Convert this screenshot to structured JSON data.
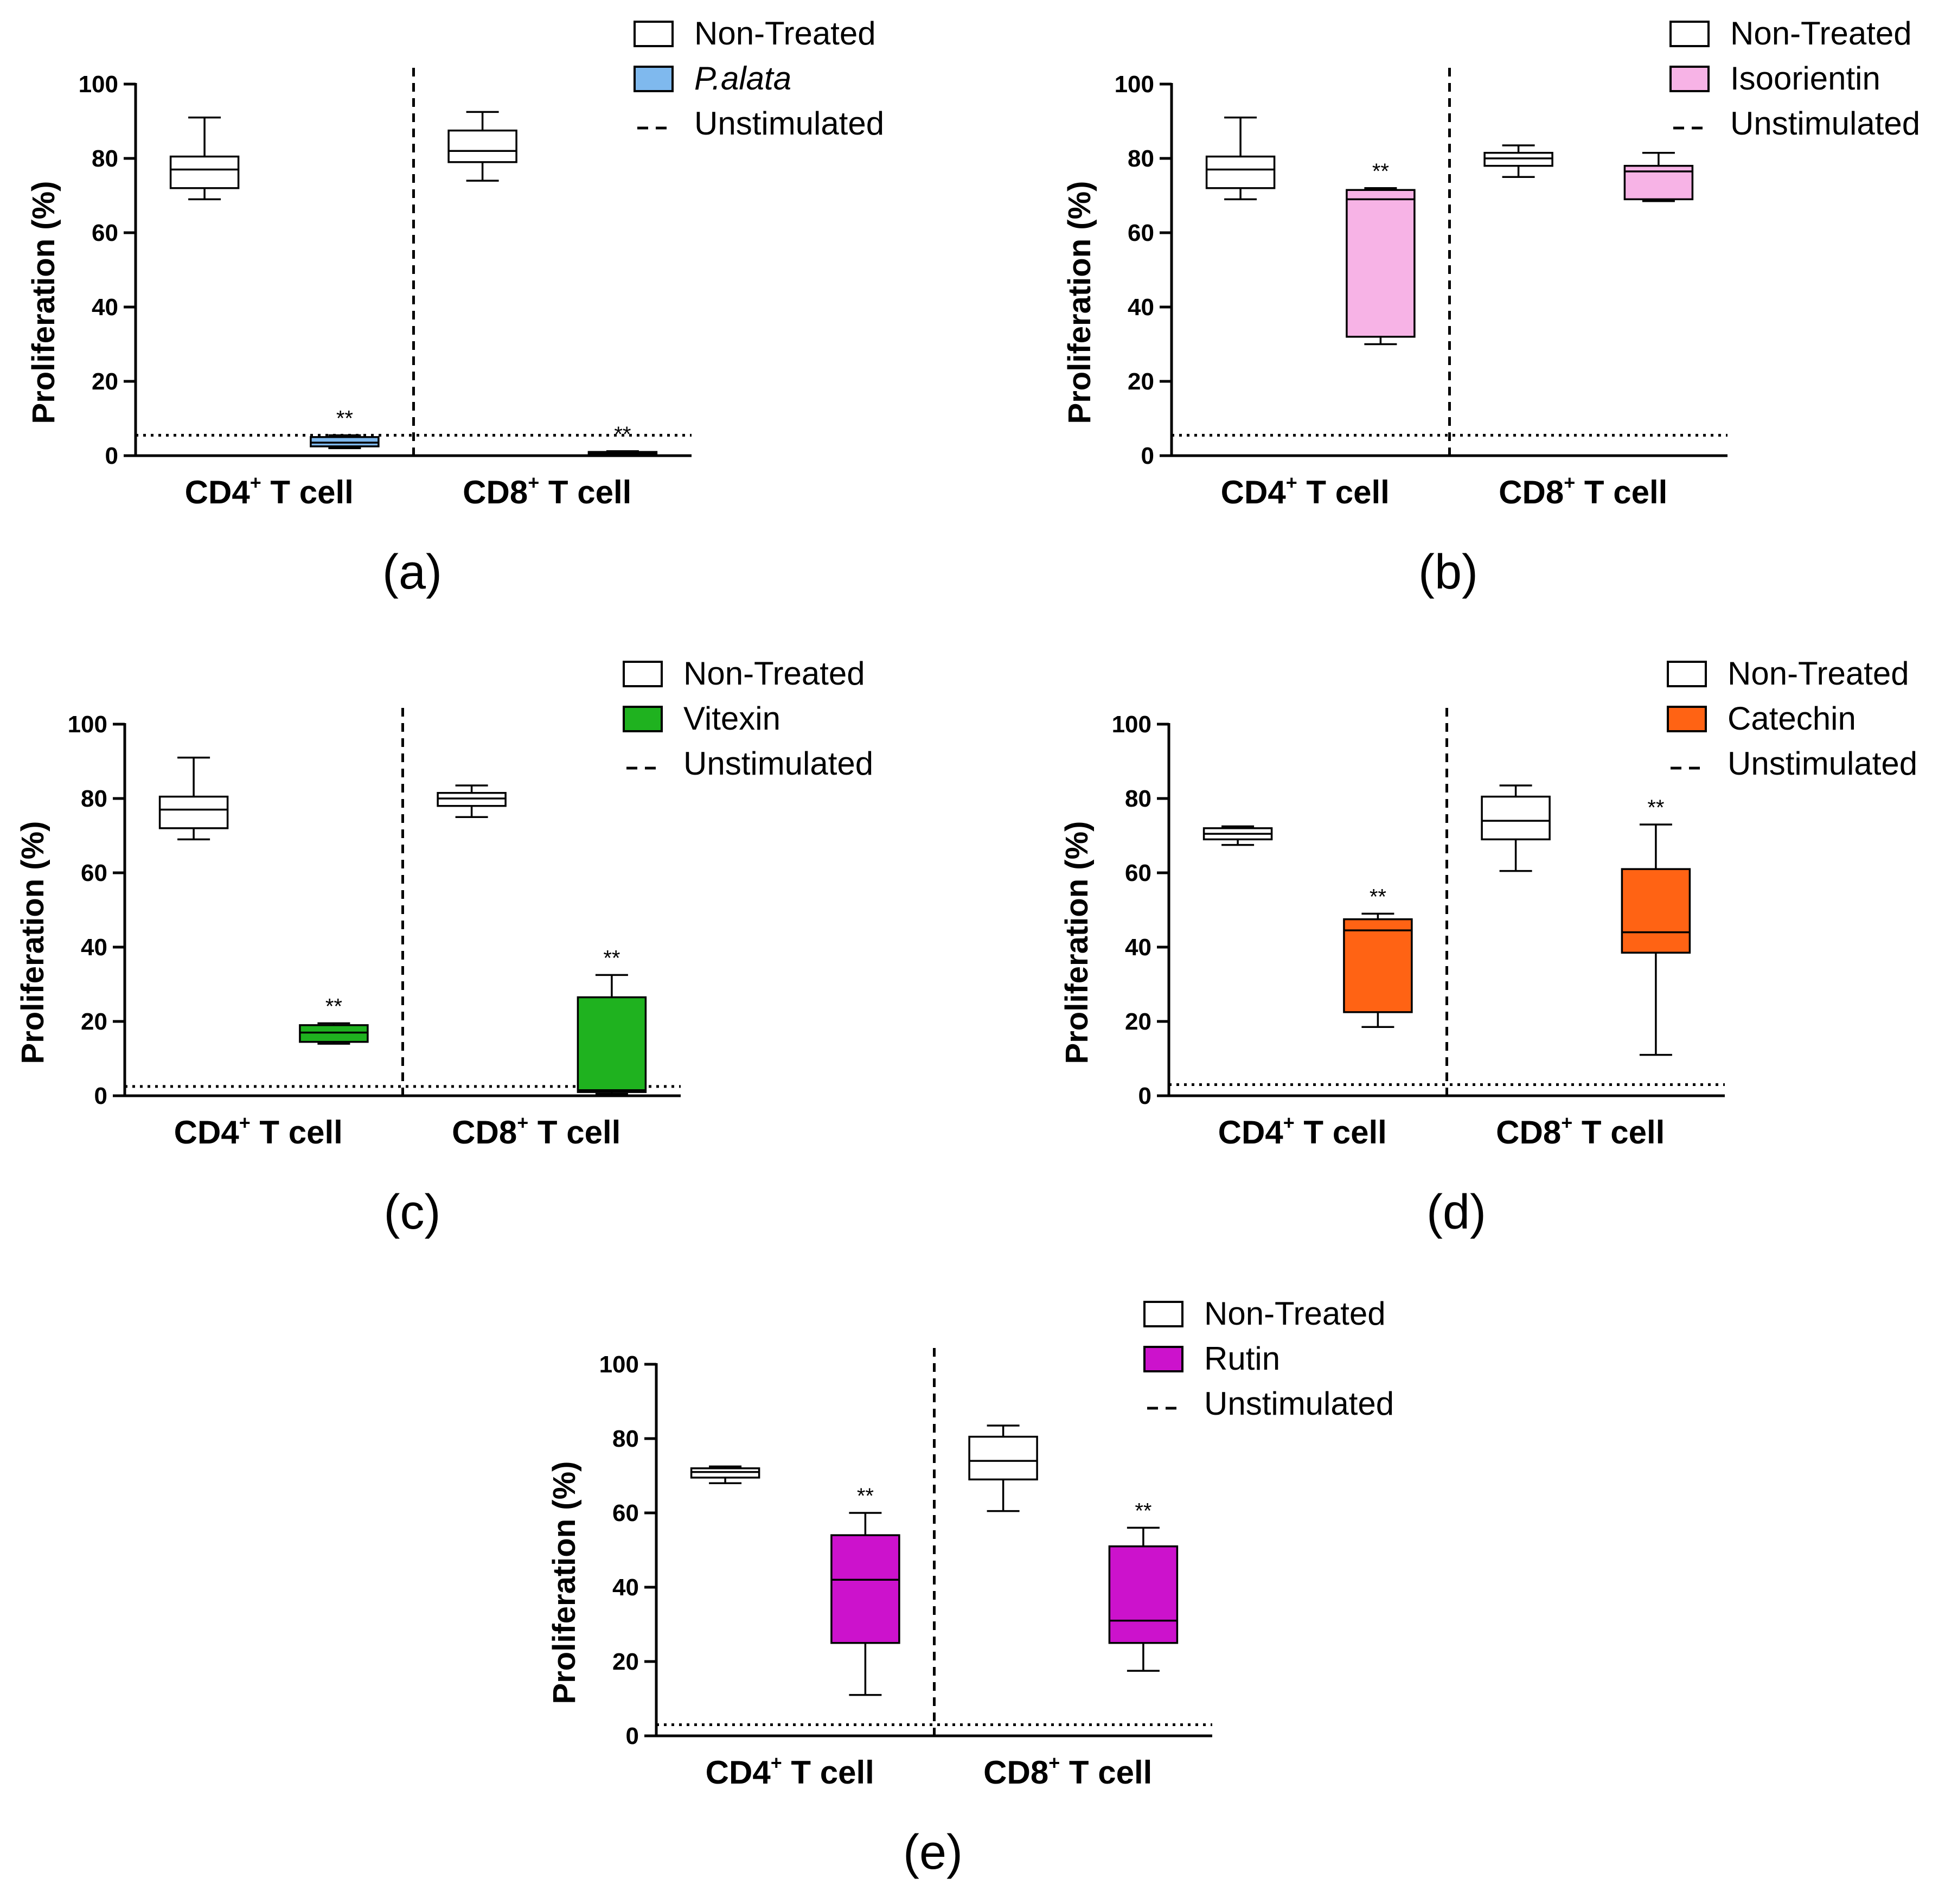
{
  "figure": {
    "panels_label": [
      "(a)",
      "(b)",
      "(c)",
      "(d)",
      "(e)"
    ]
  },
  "chart_data": [
    {
      "type": "box",
      "panel_label": "(a)",
      "ylabel": "Proliferation (%)",
      "ylim": [
        0,
        100
      ],
      "yticks": [
        "0",
        "20",
        "40",
        "60",
        "80",
        "100"
      ],
      "categories": [
        {
          "base": "CD4",
          "sup": "+",
          "suffix": " T cell"
        },
        {
          "base": "CD8",
          "sup": "+",
          "suffix": " T cell"
        }
      ],
      "reference_line": {
        "name": "Unstimulated",
        "value": 5.5
      },
      "legend": [
        {
          "label": "Non-Treated",
          "kind": "box",
          "color": "#ffffff",
          "italic": false
        },
        {
          "label": "P.alata",
          "kind": "box",
          "color": "#7fb9ee",
          "italic": true
        },
        {
          "label": "Unstimulated",
          "kind": "dash",
          "color": "#000000",
          "italic": false
        }
      ],
      "series": [
        {
          "name": "Non-Treated",
          "color": "#ffffff",
          "boxes": [
            {
              "category": 0,
              "min": 69,
              "q1": 72,
              "median": 77,
              "q3": 80.5,
              "max": 91,
              "sig": ""
            },
            {
              "category": 1,
              "min": 74,
              "q1": 79,
              "median": 82,
              "q3": 87.5,
              "max": 92.5,
              "sig": ""
            }
          ]
        },
        {
          "name": "P.alata",
          "color": "#7fb9ee",
          "boxes": [
            {
              "category": 0,
              "min": 2,
              "q1": 2.5,
              "median": 3.5,
              "q3": 5,
              "max": 5.5,
              "sig": "**"
            },
            {
              "category": 1,
              "min": 0.3,
              "q1": 0.5,
              "median": 0.7,
              "q3": 1,
              "max": 1.2,
              "sig": "**"
            }
          ]
        }
      ]
    },
    {
      "type": "box",
      "panel_label": "(b)",
      "ylabel": "Proliferation (%)",
      "ylim": [
        0,
        100
      ],
      "yticks": [
        "0",
        "20",
        "40",
        "60",
        "80",
        "100"
      ],
      "categories": [
        {
          "base": "CD4",
          "sup": "+",
          "suffix": " T cell"
        },
        {
          "base": "CD8",
          "sup": "+",
          "suffix": " T cell"
        }
      ],
      "reference_line": {
        "name": "Unstimulated",
        "value": 5.5
      },
      "legend": [
        {
          "label": "Non-Treated",
          "kind": "box",
          "color": "#ffffff",
          "italic": false
        },
        {
          "label": "Isoorientin",
          "kind": "box",
          "color": "#f7b3e6",
          "italic": false
        },
        {
          "label": "Unstimulated",
          "kind": "dash",
          "color": "#000000",
          "italic": false
        }
      ],
      "series": [
        {
          "name": "Non-Treated",
          "color": "#ffffff",
          "boxes": [
            {
              "category": 0,
              "min": 69,
              "q1": 72,
              "median": 77,
              "q3": 80.5,
              "max": 91,
              "sig": ""
            },
            {
              "category": 1,
              "min": 75,
              "q1": 78,
              "median": 80,
              "q3": 81.5,
              "max": 83.5,
              "sig": ""
            }
          ]
        },
        {
          "name": "Isoorientin",
          "color": "#f7b3e6",
          "boxes": [
            {
              "category": 0,
              "min": 30,
              "q1": 32,
              "median": 69,
              "q3": 71.5,
              "max": 72,
              "sig": "**"
            },
            {
              "category": 1,
              "min": 68.5,
              "q1": 69,
              "median": 76.5,
              "q3": 78,
              "max": 81.5,
              "sig": ""
            }
          ]
        }
      ]
    },
    {
      "type": "box",
      "panel_label": "(c)",
      "ylabel": "Proliferation (%)",
      "ylim": [
        0,
        100
      ],
      "yticks": [
        "0",
        "20",
        "40",
        "60",
        "80",
        "100"
      ],
      "categories": [
        {
          "base": "CD4",
          "sup": "+",
          "suffix": " T cell"
        },
        {
          "base": "CD8",
          "sup": "+",
          "suffix": " T cell"
        }
      ],
      "reference_line": {
        "name": "Unstimulated",
        "value": 2.5
      },
      "legend": [
        {
          "label": "Non-Treated",
          "kind": "box",
          "color": "#ffffff",
          "italic": false
        },
        {
          "label": "Vitexin",
          "kind": "box",
          "color": "#1fb21f",
          "italic": false
        },
        {
          "label": "Unstimulated",
          "kind": "dash",
          "color": "#000000",
          "italic": false
        }
      ],
      "series": [
        {
          "name": "Non-Treated",
          "color": "#ffffff",
          "boxes": [
            {
              "category": 0,
              "min": 69,
              "q1": 72,
              "median": 77,
              "q3": 80.5,
              "max": 91,
              "sig": ""
            },
            {
              "category": 1,
              "min": 75,
              "q1": 78,
              "median": 80,
              "q3": 81.5,
              "max": 83.5,
              "sig": ""
            }
          ]
        },
        {
          "name": "Vitexin",
          "color": "#1fb21f",
          "boxes": [
            {
              "category": 0,
              "min": 14,
              "q1": 14.5,
              "median": 17,
              "q3": 19,
              "max": 19.5,
              "sig": "**"
            },
            {
              "category": 1,
              "min": 0.5,
              "q1": 1,
              "median": 1.5,
              "q3": 26.5,
              "max": 32.5,
              "sig": "**"
            }
          ]
        }
      ]
    },
    {
      "type": "box",
      "panel_label": "(d)",
      "ylabel": "Proliferation (%)",
      "ylim": [
        0,
        100
      ],
      "yticks": [
        "0",
        "20",
        "40",
        "60",
        "80",
        "100"
      ],
      "categories": [
        {
          "base": "CD4",
          "sup": "+",
          "suffix": " T cell"
        },
        {
          "base": "CD8",
          "sup": "+",
          "suffix": " T cell"
        }
      ],
      "reference_line": {
        "name": "Unstimulated",
        "value": 3
      },
      "legend": [
        {
          "label": "Non-Treated",
          "kind": "box",
          "color": "#ffffff",
          "italic": false
        },
        {
          "label": "Catechin",
          "kind": "box",
          "color": "#ff6314",
          "italic": false
        },
        {
          "label": "Unstimulated",
          "kind": "dash",
          "color": "#000000",
          "italic": false
        }
      ],
      "series": [
        {
          "name": "Non-Treated",
          "color": "#ffffff",
          "boxes": [
            {
              "category": 0,
              "min": 67.5,
              "q1": 69,
              "median": 70.5,
              "q3": 72,
              "max": 72.5,
              "sig": ""
            },
            {
              "category": 1,
              "min": 60.5,
              "q1": 69,
              "median": 74,
              "q3": 80.5,
              "max": 83.5,
              "sig": ""
            }
          ]
        },
        {
          "name": "Catechin",
          "color": "#ff6314",
          "boxes": [
            {
              "category": 0,
              "min": 18.5,
              "q1": 22.5,
              "median": 44.5,
              "q3": 47.5,
              "max": 49,
              "sig": "**"
            },
            {
              "category": 1,
              "min": 11,
              "q1": 38.5,
              "median": 44,
              "q3": 61,
              "max": 73,
              "sig": "**"
            }
          ]
        }
      ]
    },
    {
      "type": "box",
      "panel_label": "(e)",
      "ylabel": "Proliferation (%)",
      "ylim": [
        0,
        100
      ],
      "yticks": [
        "0",
        "20",
        "40",
        "60",
        "80",
        "100"
      ],
      "categories": [
        {
          "base": "CD4",
          "sup": "+",
          "suffix": " T cell"
        },
        {
          "base": "CD8",
          "sup": "+",
          "suffix": " T cell"
        }
      ],
      "reference_line": {
        "name": "Unstimulated",
        "value": 3
      },
      "legend": [
        {
          "label": "Non-Treated",
          "kind": "box",
          "color": "#ffffff",
          "italic": false
        },
        {
          "label": "Rutin",
          "kind": "box",
          "color": "#cc12cc",
          "italic": false
        },
        {
          "label": "Unstimulated",
          "kind": "dash",
          "color": "#000000",
          "italic": false
        }
      ],
      "series": [
        {
          "name": "Non-Treated",
          "color": "#ffffff",
          "boxes": [
            {
              "category": 0,
              "min": 68,
              "q1": 69.5,
              "median": 71,
              "q3": 72,
              "max": 72.5,
              "sig": ""
            },
            {
              "category": 1,
              "min": 60.5,
              "q1": 69,
              "median": 74,
              "q3": 80.5,
              "max": 83.5,
              "sig": ""
            }
          ]
        },
        {
          "name": "Rutin",
          "color": "#cc12cc",
          "boxes": [
            {
              "category": 0,
              "min": 11,
              "q1": 25,
              "median": 42,
              "q3": 54,
              "max": 60,
              "sig": "**"
            },
            {
              "category": 1,
              "min": 17.5,
              "q1": 25,
              "median": 31,
              "q3": 51,
              "max": 56,
              "sig": "**"
            }
          ]
        }
      ]
    }
  ]
}
